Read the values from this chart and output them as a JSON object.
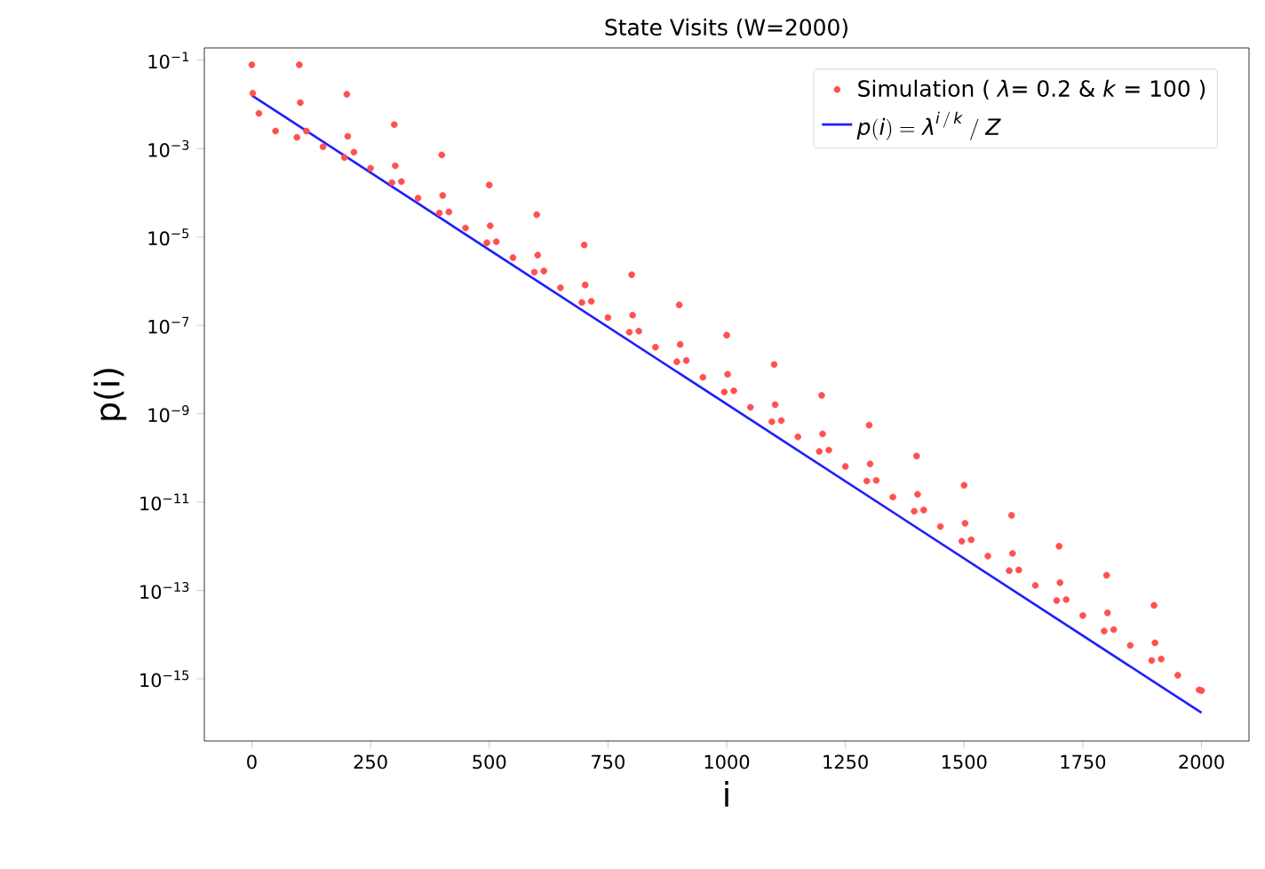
{
  "chart_data": {
    "type": "scatter",
    "title": "State Visits (W=2000)",
    "xlabel": "i",
    "ylabel": "p(i)",
    "log": "y",
    "legend": "top right",
    "xlim": [
      -100,
      2100
    ],
    "xticks": [
      0,
      250,
      500,
      750,
      1000,
      1250,
      1500,
      1750,
      2000
    ],
    "ylim": [
      3.9e-17,
      0.19
    ],
    "yticks": [
      {
        "value": 0.1,
        "label": "10$^{−1}$"
      },
      {
        "value": 0.001,
        "label": "10$^{−3}$"
      },
      {
        "value": 1e-05,
        "label": "10$^{−5}$"
      },
      {
        "value": 1e-07,
        "label": "10$^{−7}$"
      },
      {
        "value": 1e-09,
        "label": "10$^{−9}$"
      },
      {
        "value": 1e-11,
        "label": "10$^{−11}$"
      },
      {
        "value": 1e-13,
        "label": "10$^{−13}$"
      },
      {
        "value": 1e-15,
        "label": "10$^{−15}$"
      }
    ],
    "series": [
      {
        "name": "Simulation ( *λ*= 0.2 & *k* = 100 )",
        "marker": "circle",
        "color": "#ff5050",
        "x": [
          0,
          2,
          15,
          50,
          95,
          100,
          102,
          115,
          150,
          195,
          200,
          202,
          215,
          250,
          295,
          300,
          302,
          315,
          350,
          395,
          400,
          402,
          415,
          450,
          495,
          500,
          502,
          515,
          550,
          595,
          600,
          602,
          615,
          650,
          695,
          700,
          702,
          715,
          750,
          795,
          800,
          802,
          815,
          850,
          895,
          900,
          902,
          915,
          950,
          995,
          1000,
          1002,
          1015,
          1050,
          1095,
          1100,
          1102,
          1115,
          1150,
          1195,
          1200,
          1202,
          1215,
          1250,
          1295,
          1300,
          1302,
          1315,
          1350,
          1395,
          1400,
          1402,
          1415,
          1450,
          1495,
          1500,
          1502,
          1515,
          1550,
          1595,
          1600,
          1602,
          1615,
          1650,
          1695,
          1700,
          1702,
          1715,
          1750,
          1795,
          1800,
          1802,
          1815,
          1850,
          1895,
          1900,
          1902,
          1915,
          1950,
          1995,
          2000
        ],
        "values": [
          0.079,
          0.018,
          0.0063,
          0.0025,
          0.0018,
          0.079,
          0.011,
          0.0025,
          0.0011,
          0.00063,
          0.017,
          0.0019,
          0.00083,
          0.00036,
          0.00017,
          0.0035,
          0.00041,
          0.00018,
          7.6e-05,
          3.5e-05,
          0.00072,
          8.7e-05,
          3.7e-05,
          1.6e-05,
          7.4e-06,
          0.00015,
          1.8e-05,
          7.8e-06,
          3.4e-06,
          1.6e-06,
          3.2e-05,
          3.9e-06,
          1.7e-06,
          7.1e-07,
          3.3e-07,
          6.6e-06,
          8.2e-07,
          3.5e-07,
          1.5e-07,
          7e-08,
          1.4e-06,
          1.7e-07,
          7.4e-08,
          3.2e-08,
          1.5e-08,
          2.9e-07,
          3.7e-08,
          1.6e-08,
          6.7e-09,
          3.1e-09,
          6e-08,
          7.8e-09,
          3.3e-09,
          1.4e-09,
          6.6e-10,
          1.3e-08,
          1.6e-09,
          7e-10,
          3e-10,
          1.4e-10,
          2.6e-09,
          3.5e-10,
          1.5e-10,
          6.4e-11,
          3e-11,
          5.5e-10,
          7.3e-11,
          3.1e-11,
          1.3e-11,
          6.2e-12,
          1.1e-10,
          1.5e-11,
          6.6e-12,
          2.8e-12,
          1.3e-12,
          2.4e-11,
          3.3e-12,
          1.4e-12,
          6e-13,
          2.8e-13,
          5e-12,
          6.9e-13,
          2.9e-13,
          1.3e-13,
          5.9e-14,
          1e-12,
          1.5e-13,
          6.2e-14,
          2.7e-14,
          1.2e-14,
          2.2e-13,
          3.1e-14,
          1.3e-14,
          5.7e-15,
          2.6e-15,
          4.6e-14,
          6.5e-15,
          2.8e-15,
          1.2e-15,
          5.6e-16,
          5.4e-16
        ]
      },
      {
        "name": "p(i) = \\lambda^{i\\,/\\,k}\\;/\\;Z",
        "type": "line",
        "color": "#1f1fff",
        "line_style": "solid",
        "x": [
          0,
          2000
        ],
        "values": [
          0.016,
          1.7e-16
        ]
      }
    ]
  }
}
